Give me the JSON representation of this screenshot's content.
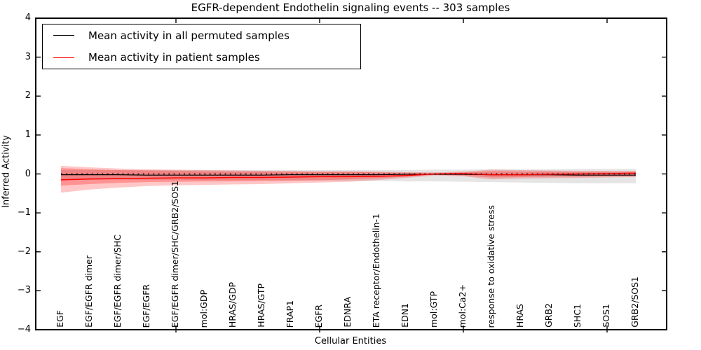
{
  "title": "EGFR-dependent Endothelin signaling events -- 303 samples",
  "axes": {
    "xlabel": "Cellular Entities",
    "ylabel": "Inferred Activity"
  },
  "legend": {
    "items": [
      {
        "label": "Mean activity in all permuted samples",
        "color": "#000000"
      },
      {
        "label": "Mean activity in patient samples",
        "color": "#ff0000"
      }
    ]
  },
  "chart_data": {
    "type": "line",
    "title": "EGFR-dependent Endothelin signaling events -- 303 samples",
    "xlabel": "Cellular Entities",
    "ylabel": "Inferred Activity",
    "ylim": [
      -4,
      4
    ],
    "yticks": [
      4,
      3,
      2,
      1,
      0,
      -1,
      -2,
      -3,
      -4
    ],
    "xticks": [
      5,
      10,
      15,
      20
    ],
    "grid": false,
    "legend_position": "upper left",
    "zero_line": true,
    "categories": [
      "EGF",
      "EGF/EGFR dimer",
      "EGF/EGFR dimer/SHC",
      "EGF/EGFR",
      "EGF/EGFR dimer/SHC/GRB2/SOS1",
      "mol:GDP",
      "HRAS/GDP",
      "HRAS/GTP",
      "FRAP1",
      "EGFR",
      "EDNRA",
      "ETA receptor/Endothelin-1",
      "EDN1",
      "mol:GTP",
      "mol:Ca2+",
      "response to oxidative stress",
      "HRAS",
      "GRB2",
      "SHC1",
      "SOS1",
      "GRB2/SOS1"
    ],
    "series": [
      {
        "name": "Mean activity in all permuted samples",
        "color": "#000000",
        "width": 1.2,
        "values": [
          -0.02,
          -0.02,
          -0.02,
          -0.03,
          -0.03,
          -0.03,
          -0.03,
          -0.03,
          -0.02,
          -0.02,
          -0.02,
          -0.02,
          -0.01,
          -0.01,
          -0.01,
          -0.02,
          -0.02,
          -0.02,
          -0.03,
          -0.03,
          -0.03
        ]
      },
      {
        "name": "Mean activity in patient samples",
        "color": "#ff0000",
        "width": 1.5,
        "values": [
          -0.15,
          -0.13,
          -0.12,
          -0.11,
          -0.1,
          -0.1,
          -0.09,
          -0.09,
          -0.08,
          -0.07,
          -0.07,
          -0.06,
          -0.04,
          0.0,
          0.01,
          -0.02,
          -0.02,
          -0.01,
          0.0,
          0.01,
          0.02
        ]
      }
    ],
    "bands": [
      {
        "name": "permuted-range",
        "color": "rgba(0,0,0,0.10)",
        "upper": [
          0.1,
          0.1,
          0.1,
          0.1,
          0.1,
          0.1,
          0.1,
          0.1,
          0.1,
          0.1,
          0.1,
          0.1,
          0.1,
          0.11,
          0.11,
          0.12,
          0.12,
          0.12,
          0.13,
          0.13,
          0.13
        ],
        "lower": [
          -0.14,
          -0.14,
          -0.15,
          -0.15,
          -0.15,
          -0.16,
          -0.16,
          -0.16,
          -0.17,
          -0.17,
          -0.18,
          -0.18,
          -0.19,
          -0.19,
          -0.2,
          -0.21,
          -0.22,
          -0.23,
          -0.24,
          -0.24,
          -0.24
        ]
      },
      {
        "name": "patient-range-outer",
        "color": "rgba(255,0,0,0.22)",
        "upper": [
          0.21,
          0.17,
          0.14,
          0.12,
          0.11,
          0.1,
          0.09,
          0.08,
          0.08,
          0.07,
          0.07,
          0.06,
          0.05,
          0.04,
          0.06,
          0.11,
          0.1,
          0.09,
          0.08,
          0.08,
          0.08
        ],
        "lower": [
          -0.48,
          -0.4,
          -0.35,
          -0.31,
          -0.29,
          -0.28,
          -0.27,
          -0.26,
          -0.24,
          -0.22,
          -0.2,
          -0.16,
          -0.1,
          -0.04,
          -0.06,
          -0.14,
          -0.12,
          -0.11,
          -0.1,
          -0.09,
          -0.08
        ]
      },
      {
        "name": "patient-range-inner",
        "color": "rgba(255,0,0,0.26)",
        "upper": [
          0.15,
          0.12,
          0.1,
          0.09,
          0.08,
          0.07,
          0.06,
          0.06,
          0.05,
          0.05,
          0.05,
          0.04,
          0.03,
          0.02,
          0.04,
          0.07,
          0.06,
          0.06,
          0.05,
          0.05,
          0.05
        ],
        "lower": [
          -0.3,
          -0.26,
          -0.23,
          -0.21,
          -0.2,
          -0.19,
          -0.19,
          -0.18,
          -0.17,
          -0.16,
          -0.14,
          -0.11,
          -0.07,
          -0.02,
          -0.04,
          -0.09,
          -0.08,
          -0.07,
          -0.07,
          -0.06,
          -0.05
        ]
      }
    ]
  }
}
